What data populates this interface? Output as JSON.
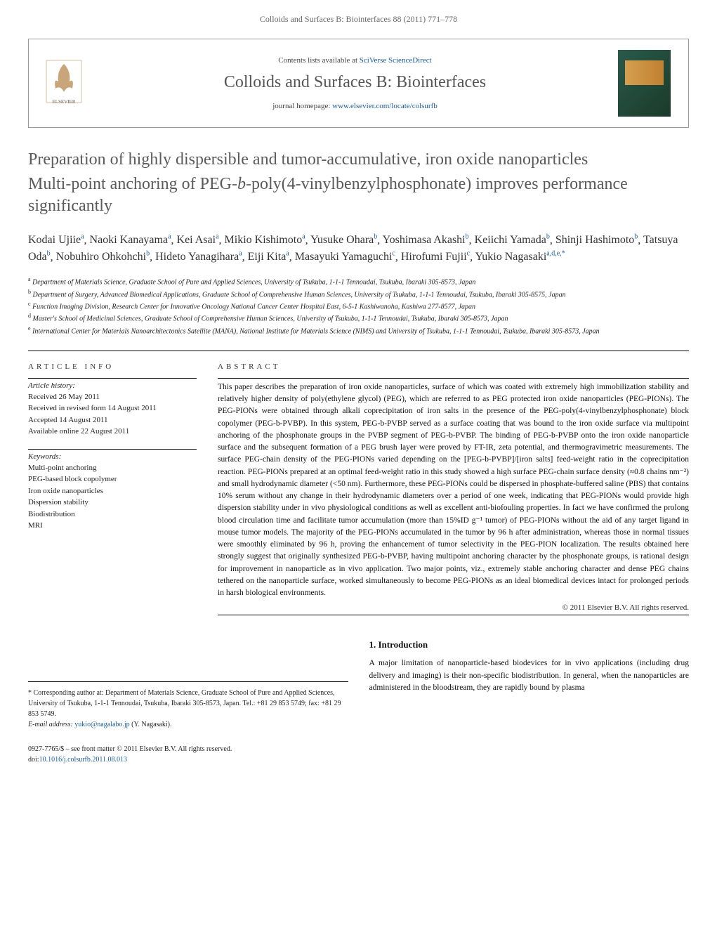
{
  "header": {
    "citation": "Colloids and Surfaces B: Biointerfaces 88 (2011) 771–778",
    "contents_line_prefix": "Contents lists available at ",
    "contents_line_link": "SciVerse ScienceDirect",
    "journal_name": "Colloids and Surfaces B: Biointerfaces",
    "homepage_prefix": "journal homepage: ",
    "homepage_link": "www.elsevier.com/locate/colsurfb"
  },
  "title": {
    "main": "Preparation of highly dispersible and tumor-accumulative, iron oxide nanoparticles",
    "subtitle_prefix": "Multi-point anchoring of PEG-",
    "subtitle_italic": "b",
    "subtitle_suffix": "-poly(4-vinylbenzylphosphonate) improves performance significantly"
  },
  "authors": [
    {
      "name": "Kodai Ujiie",
      "aff": "a"
    },
    {
      "name": "Naoki Kanayama",
      "aff": "a"
    },
    {
      "name": "Kei Asai",
      "aff": "a"
    },
    {
      "name": "Mikio Kishimoto",
      "aff": "a"
    },
    {
      "name": "Yusuke Ohara",
      "aff": "b"
    },
    {
      "name": "Yoshimasa Akashi",
      "aff": "b"
    },
    {
      "name": "Keiichi Yamada",
      "aff": "b"
    },
    {
      "name": "Shinji Hashimoto",
      "aff": "b"
    },
    {
      "name": "Tatsuya Oda",
      "aff": "b"
    },
    {
      "name": "Nobuhiro Ohkohchi",
      "aff": "b"
    },
    {
      "name": "Hideto Yanagihara",
      "aff": "a"
    },
    {
      "name": "Eiji Kita",
      "aff": "a"
    },
    {
      "name": "Masayuki Yamaguchi",
      "aff": "c"
    },
    {
      "name": "Hirofumi Fujii",
      "aff": "c"
    },
    {
      "name": "Yukio Nagasaki",
      "aff": "a,d,e,*"
    }
  ],
  "affiliations": [
    {
      "key": "a",
      "text": "Department of Materials Science, Graduate School of Pure and Applied Sciences, University of Tsukuba, 1-1-1 Tennoudai, Tsukuba, Ibaraki 305-8573, Japan"
    },
    {
      "key": "b",
      "text": "Department of Surgery, Advanced Biomedical Applications, Graduate School of Comprehensive Human Sciences, University of Tsukuba, 1-1-1 Tennoudai, Tsukuba, Ibaraki 305-8575, Japan"
    },
    {
      "key": "c",
      "text": "Function Imaging Division, Research Center for Innovative Oncology National Cancer Center Hospital East, 6-5-1 Kashiwanoha, Kashiwa 277-8577, Japan"
    },
    {
      "key": "d",
      "text": "Master's School of Medicinal Sciences, Graduate School of Comprehensive Human Sciences, University of Tsukuba, 1-1-1 Tennoudai, Tsukuba, Ibaraki 305-8573, Japan"
    },
    {
      "key": "e",
      "text": "International Center for Materials Nanoarchitectonics Satellite (MANA), National Institute for Materials Science (NIMS) and University of Tsukuba, 1-1-1 Tennoudai, Tsukuba, Ibaraki 305-8573, Japan"
    }
  ],
  "article_info": {
    "heading": "ARTICLE INFO",
    "history_label": "Article history:",
    "history": [
      "Received 26 May 2011",
      "Received in revised form 14 August 2011",
      "Accepted 14 August 2011",
      "Available online 22 August 2011"
    ],
    "keywords_label": "Keywords:",
    "keywords": [
      "Multi-point anchoring",
      "PEG-based block copolymer",
      "Iron oxide nanoparticles",
      "Dispersion stability",
      "Biodistribution",
      "MRI"
    ]
  },
  "abstract": {
    "heading": "ABSTRACT",
    "text": "This paper describes the preparation of iron oxide nanoparticles, surface of which was coated with extremely high immobilization stability and relatively higher density of poly(ethylene glycol) (PEG), which are referred to as PEG protected iron oxide nanoparticles (PEG-PIONs). The PEG-PIONs were obtained through alkali coprecipitation of iron salts in the presence of the PEG-poly(4-vinylbenzylphosphonate) block copolymer (PEG-b-PVBP). In this system, PEG-b-PVBP served as a surface coating that was bound to the iron oxide surface via multipoint anchoring of the phosphonate groups in the PVBP segment of PEG-b-PVBP. The binding of PEG-b-PVBP onto the iron oxide nanoparticle surface and the subsequent formation of a PEG brush layer were proved by FT-IR, zeta potential, and thermogravimetric measurements. The surface PEG-chain density of the PEG-PIONs varied depending on the [PEG-b-PVBP]/[iron salts] feed-weight ratio in the coprecipitation reaction. PEG-PIONs prepared at an optimal feed-weight ratio in this study showed a high surface PEG-chain surface density (≈0.8 chains nm⁻²) and small hydrodynamic diameter (<50 nm). Furthermore, these PEG-PIONs could be dispersed in phosphate-buffered saline (PBS) that contains 10% serum without any change in their hydrodynamic diameters over a period of one week, indicating that PEG-PIONs would provide high dispersion stability under in vivo physiological conditions as well as excellent anti-biofouling properties. In fact we have confirmed the prolong blood circulation time and facilitate tumor accumulation (more than 15%ID g⁻¹ tumor) of PEG-PIONs without the aid of any target ligand in mouse tumor models. The majority of the PEG-PIONs accumulated in the tumor by 96 h after administration, whereas those in normal tissues were smoothly eliminated by 96 h, proving the enhancement of tumor selectivity in the PEG-PION localization. The results obtained here strongly suggest that originally synthesized PEG-b-PVBP, having multipoint anchoring character by the phosphonate groups, is rational design for improvement in nanoparticle as in vivo application. Two major points, viz., extremely stable anchoring character and dense PEG chains tethered on the nanoparticle surface, worked simultaneously to become PEG-PIONs as an ideal biomedical devices intact for prolonged periods in harsh biological environments.",
    "copyright": "© 2011 Elsevier B.V. All rights reserved."
  },
  "intro": {
    "heading": "1. Introduction",
    "text": "A major limitation of nanoparticle-based biodevices for in vivo applications (including drug delivery and imaging) is their non-specific biodistribution. In general, when the nanoparticles are administered in the bloodstream, they are rapidly bound by plasma"
  },
  "footnote": {
    "corresponding": "* Corresponding author at: Department of Materials Science, Graduate School of Pure and Applied Sciences, University of Tsukuba, 1-1-1 Tennoudai, Tsukuba, Ibaraki 305-8573, Japan. Tel.: +81 29 853 5749; fax: +81 29 853 5749.",
    "email_label": "E-mail address: ",
    "email": "yukio@nagalabo.jp",
    "email_suffix": " (Y. Nagasaki)."
  },
  "footer": {
    "line1": "0927-7765/$ – see front matter © 2011 Elsevier B.V. All rights reserved.",
    "doi_prefix": "doi:",
    "doi": "10.1016/j.colsurfb.2011.08.013"
  },
  "colors": {
    "link": "#1a5a9a",
    "title_gray": "#5a5a5a",
    "body": "#111111",
    "border": "#000000"
  },
  "typography": {
    "title_fontsize": 24,
    "body_fontsize": 11.5,
    "section_heading_fontsize": 11,
    "footnote_fontsize": 10
  }
}
